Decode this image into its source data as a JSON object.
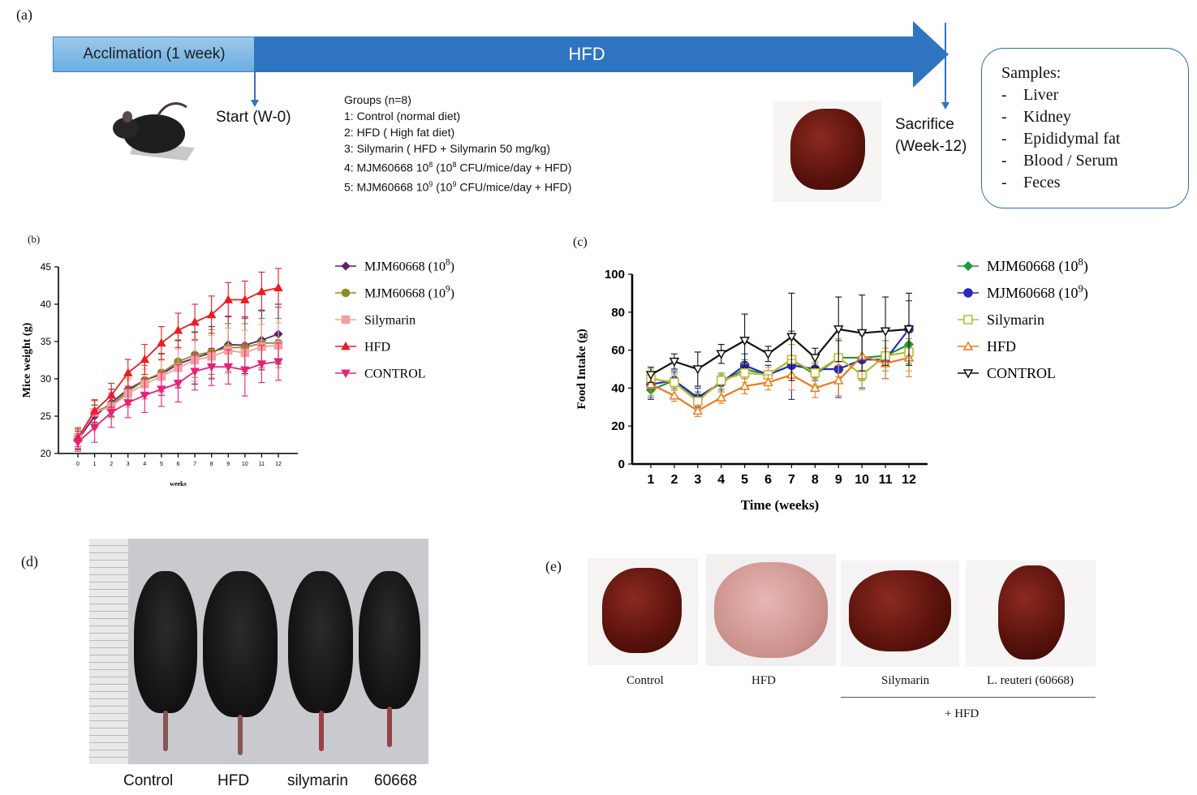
{
  "panels": {
    "a": "(a)",
    "b": "(b)",
    "c": "(c)",
    "d": "(d)",
    "e": "(e)"
  },
  "timeline": {
    "acclimation": "Acclimation (1 week)",
    "hfd": "HFD",
    "start": "Start (W-0)",
    "sacrifice_line1": "Sacrifice",
    "sacrifice_line2": "(Week-12)"
  },
  "groups": {
    "title": "Groups (n=8)",
    "g1": "1: Control (normal diet)",
    "g2": "2: HFD ( High fat diet)",
    "g3": "3: Silymarin ( HFD + Silymarin 50 mg/kg)",
    "g4_pre": "4: MJM60668 10",
    "g4_exp": "8",
    "g4_mid": " (10",
    "g4_exp2": "8",
    "g4_post": " CFU/mice/day + HFD)",
    "g5_pre": "5: MJM60668 10",
    "g5_exp": "9",
    "g5_mid": " (10",
    "g5_exp2": "9",
    "g5_post": " CFU/mice/day + HFD)"
  },
  "samples": {
    "title": "Samples:",
    "items": [
      "Liver",
      "Kidney",
      "Epididymal  fat",
      "Blood / Serum",
      "Feces"
    ]
  },
  "photo_d": {
    "labels": [
      "Control",
      "HFD",
      "silymarin",
      "60668"
    ]
  },
  "photo_e": {
    "labels": [
      "Control",
      "HFD",
      "Silymarin",
      "L. reuteri (60668)"
    ],
    "group_label": "+ HFD"
  },
  "colors": {
    "timeline_blue": "#2f74c0",
    "acclim_blue": "#7fb9e6"
  },
  "chart_data": [
    {
      "id": "b",
      "type": "line",
      "title": "",
      "xlabel": "weeks",
      "ylabel": "Mice weight (g)",
      "x": [
        0,
        1,
        2,
        3,
        4,
        5,
        6,
        7,
        8,
        9,
        10,
        11,
        12
      ],
      "xticks": [
        "0",
        "1",
        "2",
        "3",
        "4",
        "5",
        "6",
        "7",
        "8",
        "9",
        "10",
        "11",
        "12"
      ],
      "yticks": [
        "20",
        "25",
        "30",
        "35",
        "40",
        "45"
      ],
      "ylim": [
        20,
        45
      ],
      "legend_position": "right",
      "series": [
        {
          "name": "MJM60668 (10",
          "sup": "8",
          "tail": ")",
          "color": "#5b1f6e",
          "marker": "diamond",
          "values": [
            21.8,
            25.0,
            26.8,
            28.6,
            29.8,
            30.6,
            32.0,
            32.8,
            33.5,
            34.6,
            34.5,
            35.2,
            36.0
          ],
          "err": [
            1.2,
            1.5,
            1.8,
            2.0,
            2.5,
            2.8,
            3.2,
            3.5,
            3.5,
            3.8,
            3.8,
            4.0,
            4.0
          ]
        },
        {
          "name": "MJM60668 (10",
          "sup": "9",
          "tail": ")",
          "color": "#8b8b22",
          "marker": "circle",
          "values": [
            22.0,
            25.6,
            26.5,
            28.3,
            29.8,
            30.8,
            32.3,
            33.2,
            33.6,
            34.2,
            34.2,
            34.8,
            34.8
          ],
          "err": [
            1.5,
            1.5,
            1.6,
            1.8,
            2.0,
            2.5,
            2.8,
            3.0,
            3.0,
            3.2,
            3.2,
            3.3,
            3.3
          ]
        },
        {
          "name": "Silymarin",
          "sup": "",
          "tail": "",
          "color": "#f4a0a0",
          "marker": "square",
          "values": [
            22.0,
            25.5,
            26.3,
            28.0,
            29.3,
            30.3,
            31.5,
            32.5,
            33.0,
            33.8,
            33.5,
            34.3,
            34.5
          ],
          "err": [
            1.3,
            1.5,
            1.6,
            1.8,
            2.0,
            2.2,
            2.5,
            2.8,
            2.8,
            3.0,
            3.0,
            3.0,
            3.0
          ]
        },
        {
          "name": "HFD",
          "sup": "",
          "tail": "",
          "color": "#e81d24",
          "marker": "triangle",
          "values": [
            22.1,
            25.7,
            27.8,
            30.8,
            32.6,
            34.8,
            36.5,
            37.6,
            38.6,
            40.6,
            40.6,
            41.7,
            42.2
          ],
          "err": [
            1.2,
            1.5,
            1.6,
            1.8,
            2.0,
            2.2,
            2.3,
            2.4,
            2.5,
            2.3,
            2.5,
            2.6,
            2.6
          ]
        },
        {
          "name": "CONTROL",
          "sup": "",
          "tail": "",
          "color": "#e8207a",
          "marker": "triangle-down",
          "values": [
            21.5,
            23.5,
            25.5,
            26.8,
            27.8,
            28.6,
            29.4,
            31.0,
            31.6,
            31.6,
            31.2,
            32.0,
            32.3
          ],
          "err": [
            1.2,
            2.0,
            2.0,
            2.0,
            2.3,
            2.3,
            2.5,
            2.5,
            2.5,
            2.3,
            3.5,
            2.5,
            2.5
          ]
        }
      ]
    },
    {
      "id": "c",
      "type": "line",
      "title": "",
      "xlabel": "Time (weeks)",
      "ylabel": "Food Intake  (g)",
      "x": [
        1,
        2,
        3,
        4,
        5,
        6,
        7,
        8,
        9,
        10,
        11,
        12
      ],
      "xticks": [
        "1",
        "2",
        "3",
        "4",
        "5",
        "6",
        "7",
        "8",
        "9",
        "10",
        "11",
        "12"
      ],
      "yticks": [
        "0",
        "20",
        "40",
        "60",
        "80",
        "100"
      ],
      "ylim": [
        0,
        100
      ],
      "legend_position": "right",
      "series": [
        {
          "name": "MJM60668 (10",
          "sup": "8",
          "tail": ")",
          "color": "#1e9a3a",
          "marker": "diamond",
          "values": [
            39,
            44,
            34,
            43,
            50,
            47,
            55,
            47,
            56,
            56,
            57,
            63
          ],
          "err": [
            4,
            4,
            4,
            4,
            5,
            5,
            8,
            6,
            10,
            12,
            8,
            10
          ]
        },
        {
          "name": "MJM60668 (10",
          "sup": "9",
          "tail": ")",
          "color": "#2a2ab8",
          "marker": "circle",
          "values": [
            42,
            44,
            35,
            43,
            52,
            47,
            52,
            50,
            50,
            55,
            55,
            71
          ],
          "err": [
            8,
            5,
            5,
            5,
            6,
            5,
            18,
            6,
            15,
            15,
            10,
            15
          ]
        },
        {
          "name": "Silymarin",
          "sup": "",
          "tail": "",
          "color": "#b9b92a",
          "marker": "square",
          "values": [
            45,
            43,
            33,
            44,
            48,
            47,
            55,
            48,
            56,
            47,
            57,
            59
          ],
          "err": [
            5,
            4,
            4,
            4,
            5,
            4,
            8,
            6,
            10,
            8,
            8,
            10
          ]
        },
        {
          "name": "HFD",
          "sup": "",
          "tail": "",
          "color": "#f07a1a",
          "marker": "triangle",
          "values": [
            42,
            36,
            28,
            35,
            41,
            43,
            47,
            40,
            44,
            57,
            53,
            56
          ],
          "err": [
            6,
            3,
            3,
            3,
            4,
            4,
            8,
            5,
            8,
            12,
            8,
            10
          ]
        },
        {
          "name": "CONTROL",
          "sup": "",
          "tail": "",
          "color": "#111111",
          "marker": "triangle-down",
          "values": [
            47,
            54,
            50,
            58,
            65,
            58,
            67,
            56,
            71,
            69,
            70,
            71
          ],
          "err": [
            4,
            4,
            9,
            5,
            14,
            4,
            23,
            5,
            17,
            20,
            18,
            19
          ]
        }
      ]
    }
  ]
}
